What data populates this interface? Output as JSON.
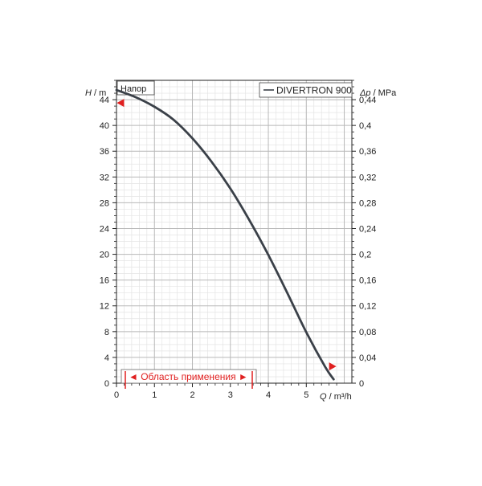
{
  "chart_data": {
    "type": "line",
    "title": "Напор",
    "xlabel": "Q / m³/h",
    "ylabel": "H / m",
    "y2label": "Δp / MPa",
    "xlim": [
      0,
      6.2
    ],
    "ylim": [
      0,
      47
    ],
    "y2lim": [
      0,
      0.47
    ],
    "x_ticks": [
      "0",
      "1",
      "2",
      "3",
      "4",
      "5"
    ],
    "y_ticks": [
      "0",
      "4",
      "8",
      "12",
      "16",
      "20",
      "24",
      "28",
      "32",
      "36",
      "40",
      "44"
    ],
    "y2_ticks": [
      "0",
      "0,04",
      "0,08",
      "0,12",
      "0,16",
      "0,2",
      "0,24",
      "0,28",
      "0,32",
      "0,36",
      "0,4",
      "0,44"
    ],
    "grid": true,
    "legend_position": "top-right",
    "series": [
      {
        "name": "DIVERTRON 900",
        "color": "#3a4048",
        "x": [
          0,
          0.5,
          1.0,
          1.5,
          2.0,
          2.5,
          3.0,
          3.5,
          4.0,
          4.5,
          5.0,
          5.5,
          5.72
        ],
        "y": [
          45.5,
          44.4,
          42.9,
          40.9,
          38.0,
          34.4,
          30.2,
          25.3,
          19.9,
          14.0,
          7.9,
          2.5,
          0.6
        ]
      }
    ],
    "application_range": {
      "label": "◄ Область применения ►",
      "x_start": 0.25,
      "x_end": 5.6,
      "color": "#e02020"
    }
  }
}
